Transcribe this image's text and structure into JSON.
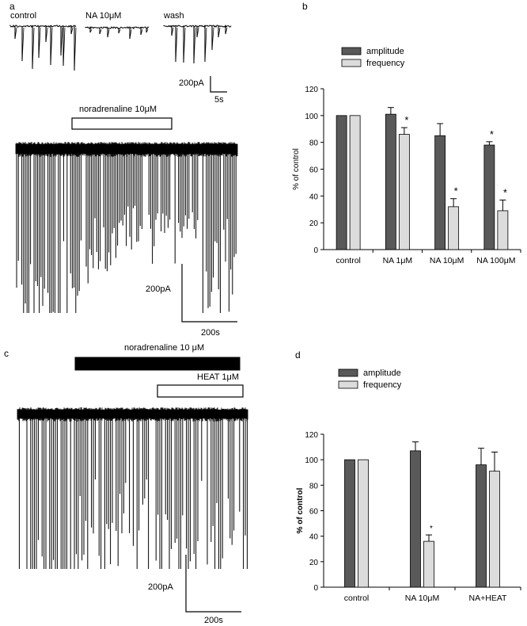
{
  "panels": {
    "a": {
      "letter": "a",
      "trace_labels": [
        "control",
        "NA 10μM",
        "wash"
      ],
      "scale_top": {
        "y_label": "200pA",
        "x_label": "5s"
      },
      "bar_label": "noradrenaline 10μM",
      "scale_bottom": {
        "y_label": "200pA",
        "x_label": "200s"
      }
    },
    "b": {
      "letter": "b"
    },
    "c": {
      "letter": "c",
      "bar1_label": "noradrenaline 10 μM",
      "bar2_label": "HEAT 1μM",
      "scale": {
        "y_label": "200pA",
        "x_label": "200s"
      }
    },
    "d": {
      "letter": "d"
    }
  },
  "colors": {
    "amplitude": "#595959",
    "frequency": "#dcdcdc"
  },
  "chart_data": [
    {
      "panel": "b",
      "type": "bar",
      "categories": [
        "control",
        "NA 1μM",
        "NA 10μM",
        "NA 100μM"
      ],
      "series": [
        {
          "name": "amplitude",
          "values": [
            100,
            101,
            85,
            78
          ],
          "errors": [
            0,
            5,
            9,
            2.5
          ]
        },
        {
          "name": "frequency",
          "values": [
            100,
            86,
            32,
            29
          ],
          "errors": [
            0,
            5,
            6,
            8
          ]
        }
      ],
      "significance": [
        {
          "category": "NA 1μM",
          "series": "frequency",
          "label": "*"
        },
        {
          "category": "NA 10μM",
          "series": "frequency",
          "label": "*"
        },
        {
          "category": "NA 100μM",
          "series": "amplitude",
          "label": "*"
        },
        {
          "category": "NA 100μM",
          "series": "frequency",
          "label": "*"
        }
      ],
      "ylabel": "% of control",
      "ylim": [
        0,
        120
      ],
      "yticks": [
        "0",
        "20",
        "40",
        "60",
        "80",
        "100",
        "120"
      ],
      "legend": "top-left",
      "grid": false
    },
    {
      "panel": "d",
      "type": "bar",
      "categories": [
        "control",
        "NA 10μM",
        "NA+HEAT"
      ],
      "series": [
        {
          "name": "amplitude",
          "values": [
            100,
            107,
            96
          ],
          "errors": [
            0,
            7,
            13
          ]
        },
        {
          "name": "frequency",
          "values": [
            100,
            36,
            91
          ],
          "errors": [
            0,
            5,
            15
          ]
        }
      ],
      "significance": [
        {
          "category": "NA 10μM",
          "series": "frequency",
          "label": "*"
        }
      ],
      "ylabel": "% of control",
      "ylim": [
        0,
        120
      ],
      "yticks": [
        "0",
        "20",
        "40",
        "60",
        "80",
        "100",
        "120"
      ],
      "legend": "top-left",
      "grid": false
    }
  ]
}
